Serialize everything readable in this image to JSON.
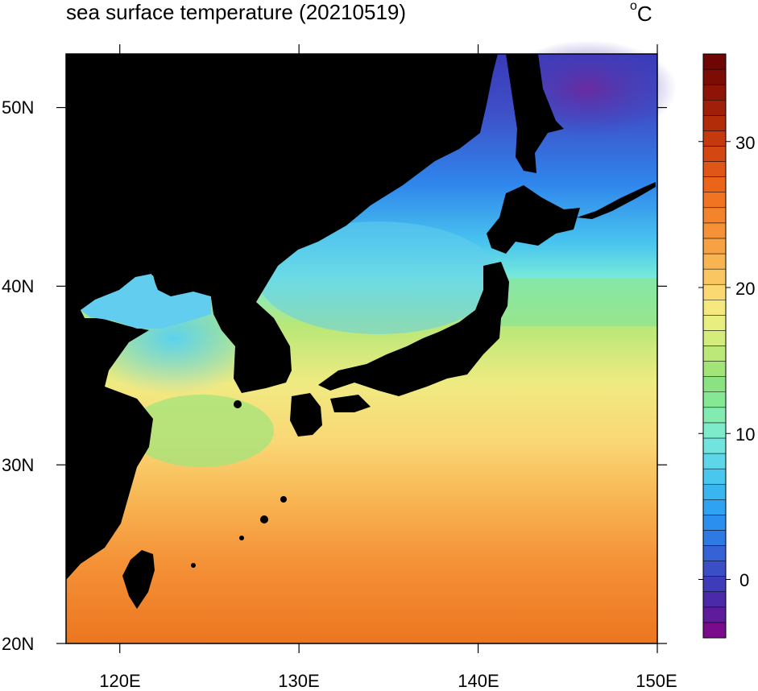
{
  "title": "sea surface temperature (20210519)",
  "units": {
    "sup": "o",
    "main": "C"
  },
  "map": {
    "lon_range": [
      117,
      150
    ],
    "lat_range": [
      20,
      53
    ],
    "lon_ticks": [
      "120E",
      "130E",
      "140E",
      "150E"
    ],
    "lat_ticks": [
      "20N",
      "30N",
      "40N",
      "50N"
    ],
    "land_color": "#000000"
  },
  "colorbar": {
    "range": [
      -4,
      36
    ],
    "tick_labels": [
      "0",
      "10",
      "20",
      "30"
    ],
    "colors": [
      "#7a0c8c",
      "#5e1c9c",
      "#4a2aa8",
      "#3e3cb8",
      "#3a4ec6",
      "#3562d4",
      "#2f79e4",
      "#2b8ff0",
      "#2fa3f2",
      "#39b6f0",
      "#49c7ee",
      "#5dd6ea",
      "#72e4e0",
      "#7eeccb",
      "#82ecb0",
      "#84e895",
      "#8ae282",
      "#a2e478",
      "#bbe878",
      "#d4ec7c",
      "#e8ee80",
      "#f5e87e",
      "#fad872",
      "#fac662",
      "#f8b352",
      "#f6a244",
      "#f59238",
      "#f3832c",
      "#f07422",
      "#ea651a",
      "#e05616",
      "#d34812",
      "#c43a0e",
      "#b22c0a",
      "#a01f08",
      "#8e1506",
      "#7d0c04",
      "#6d0604"
    ]
  }
}
